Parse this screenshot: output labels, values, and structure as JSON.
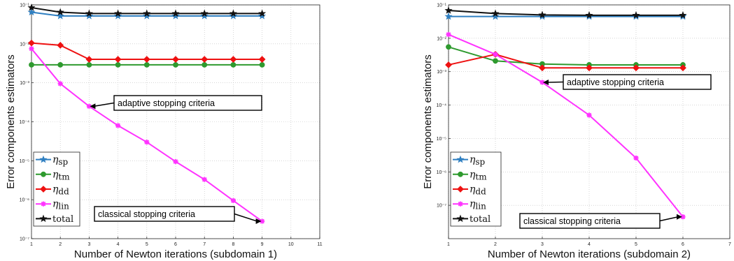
{
  "chart_data": [
    {
      "type": "line",
      "xlabel": "Number of Newton iterations (subdomain 1)",
      "ylabel": "Error components estimators",
      "y_scale": "log",
      "xlim": [
        1,
        11
      ],
      "ylim": [
        1e-07,
        0.1
      ],
      "x_ticks": [
        1,
        2,
        3,
        4,
        5,
        6,
        7,
        8,
        9,
        10,
        11
      ],
      "y_ticks": [
        {
          "value": 1e-07,
          "label": "10⁻⁷"
        },
        {
          "value": 1e-06,
          "label": "10⁻⁶"
        },
        {
          "value": 1e-05,
          "label": "10⁻⁵"
        },
        {
          "value": 0.0001,
          "label": "10⁻⁴"
        },
        {
          "value": 0.001,
          "label": "10⁻³"
        },
        {
          "value": 0.01,
          "label": "10⁻²"
        },
        {
          "value": 0.1,
          "label": "10⁻¹"
        }
      ],
      "grid": true,
      "legend_position": "bottom-left",
      "series": [
        {
          "name": "η",
          "sub": "sp",
          "color": "#2f7fc1",
          "marker": "star",
          "x": [
            1,
            2,
            3,
            4,
            5,
            6,
            7,
            8,
            9
          ],
          "y": [
            0.065,
            0.052,
            0.052,
            0.052,
            0.052,
            0.052,
            0.052,
            0.052,
            0.052
          ]
        },
        {
          "name": "η",
          "sub": "tm",
          "color": "#2e9a2e",
          "marker": "circle",
          "x": [
            1,
            2,
            3,
            4,
            5,
            6,
            7,
            8,
            9
          ],
          "y": [
            0.0029,
            0.0029,
            0.0029,
            0.0029,
            0.0029,
            0.0029,
            0.0029,
            0.0029,
            0.0029
          ]
        },
        {
          "name": "η",
          "sub": "dd",
          "color": "#ee1111",
          "marker": "diamond",
          "x": [
            1,
            2,
            3,
            4,
            5,
            6,
            7,
            8,
            9
          ],
          "y": [
            0.0105,
            0.0092,
            0.004,
            0.004,
            0.004,
            0.004,
            0.004,
            0.004,
            0.004
          ]
        },
        {
          "name": "η",
          "sub": "lin",
          "color": "#ff33ff",
          "marker": "asterisk",
          "x": [
            1,
            2,
            3,
            4,
            5,
            6,
            7,
            8,
            9
          ],
          "y": [
            0.0075,
            0.00095,
            0.00025,
            8e-05,
            3e-05,
            9.5e-06,
            3.3e-06,
            9.5e-07,
            2.8e-07
          ]
        },
        {
          "name": "total",
          "sub": "",
          "color": "#111111",
          "marker": "star",
          "x": [
            1,
            2,
            3,
            4,
            5,
            6,
            7,
            8,
            9
          ],
          "y": [
            0.085,
            0.065,
            0.06,
            0.06,
            0.06,
            0.06,
            0.06,
            0.06,
            0.06
          ]
        }
      ],
      "annotations": [
        {
          "text": "adaptive stopping criteria",
          "x": 3,
          "y": 0.00025
        },
        {
          "text": "classical stopping criteria",
          "x": 9,
          "y": 2.8e-07
        }
      ]
    },
    {
      "type": "line",
      "xlabel": "Number of Newton iterations (subdomain 2)",
      "ylabel": "Error components estimators",
      "y_scale": "log",
      "xlim": [
        1,
        7
      ],
      "ylim": [
        1e-08,
        0.1
      ],
      "x_ticks": [
        1,
        2,
        3,
        4,
        5,
        6,
        7
      ],
      "y_ticks": [
        {
          "value": 1e-07,
          "label": "10⁻⁷"
        },
        {
          "value": 1e-06,
          "label": "10⁻⁶"
        },
        {
          "value": 1e-05,
          "label": "10⁻⁵"
        },
        {
          "value": 0.0001,
          "label": "10⁻⁴"
        },
        {
          "value": 0.001,
          "label": "10⁻³"
        },
        {
          "value": 0.01,
          "label": "10⁻²"
        },
        {
          "value": 0.1,
          "label": "10⁻¹"
        }
      ],
      "grid": true,
      "legend_position": "bottom-left",
      "series": [
        {
          "name": "η",
          "sub": "sp",
          "color": "#2f7fc1",
          "marker": "star",
          "x": [
            1,
            2,
            3,
            4,
            5,
            6
          ],
          "y": [
            0.045,
            0.045,
            0.045,
            0.045,
            0.045,
            0.045
          ]
        },
        {
          "name": "η",
          "sub": "tm",
          "color": "#2e9a2e",
          "marker": "circle",
          "x": [
            1,
            2,
            3,
            4,
            5,
            6
          ],
          "y": [
            0.0055,
            0.0021,
            0.0017,
            0.0016,
            0.0016,
            0.0016
          ]
        },
        {
          "name": "η",
          "sub": "dd",
          "color": "#ee1111",
          "marker": "diamond",
          "x": [
            1,
            2,
            3,
            4,
            5,
            6
          ],
          "y": [
            0.0016,
            0.0033,
            0.0013,
            0.0013,
            0.0013,
            0.0013
          ]
        },
        {
          "name": "η",
          "sub": "lin",
          "color": "#ff33ff",
          "marker": "asterisk",
          "x": [
            1,
            2,
            3,
            4,
            5,
            6
          ],
          "y": [
            0.013,
            0.0033,
            0.00048,
            5e-05,
            2.6e-06,
            4.5e-08
          ]
        },
        {
          "name": "total",
          "sub": "",
          "color": "#111111",
          "marker": "star",
          "x": [
            1,
            2,
            3,
            4,
            5,
            6
          ],
          "y": [
            0.068,
            0.055,
            0.05,
            0.049,
            0.049,
            0.049
          ]
        }
      ],
      "annotations": [
        {
          "text": "adaptive stopping criteria",
          "x": 3,
          "y": 0.00048
        },
        {
          "text": "classical stopping criteria",
          "x": 6,
          "y": 4.5e-08
        }
      ]
    }
  ]
}
